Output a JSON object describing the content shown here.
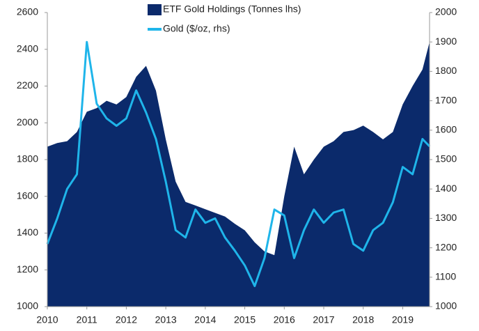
{
  "chart_data": {
    "type": "area-line",
    "x": [
      2010,
      2010.25,
      2010.5,
      2010.75,
      2011,
      2011.25,
      2011.5,
      2011.75,
      2012,
      2012.25,
      2012.5,
      2012.75,
      2013,
      2013.25,
      2013.5,
      2013.75,
      2014,
      2014.25,
      2014.5,
      2014.75,
      2015,
      2015.25,
      2015.5,
      2015.75,
      2016,
      2016.25,
      2016.5,
      2016.75,
      2017,
      2017.25,
      2017.5,
      2017.75,
      2018,
      2018.25,
      2018.5,
      2018.75,
      2019,
      2019.25,
      2019.5,
      2019.68
    ],
    "series": [
      {
        "name": "ETF Gold Holdings (Tonnes lhs)",
        "color": "#0b2a6b",
        "kind": "area",
        "values": [
          1870,
          1890,
          1900,
          1950,
          2060,
          2080,
          2120,
          2100,
          2140,
          2250,
          2310,
          2175,
          1910,
          1680,
          1570,
          1550,
          1530,
          1510,
          1490,
          1450,
          1415,
          1350,
          1300,
          1280,
          1600,
          1870,
          1720,
          1800,
          1870,
          1900,
          1950,
          1960,
          1985,
          1950,
          1910,
          1950,
          2100,
          2200,
          2290,
          2440
        ]
      },
      {
        "name": "Gold ($/oz, rhs)",
        "color": "#1fb5ea",
        "kind": "line",
        "axis": "y2",
        "values": [
          1213,
          1300,
          1400,
          1450,
          1900,
          1690,
          1640,
          1615,
          1640,
          1735,
          1660,
          1570,
          1425,
          1260,
          1235,
          1330,
          1285,
          1300,
          1235,
          1190,
          1140,
          1070,
          1165,
          1330,
          1310,
          1165,
          1260,
          1330,
          1285,
          1320,
          1330,
          1213,
          1190,
          1260,
          1285,
          1355,
          1475,
          1450,
          1570,
          1545
        ]
      }
    ],
    "xlim": [
      2010,
      2019.68
    ],
    "xticks": [
      2010,
      2011,
      2012,
      2013,
      2014,
      2015,
      2016,
      2017,
      2018,
      2019
    ],
    "ylim": [
      1000,
      2600
    ],
    "yticks": [
      1000,
      1200,
      1400,
      1600,
      1800,
      2000,
      2200,
      2400,
      2600
    ],
    "y2lim": [
      1000,
      2000
    ],
    "y2ticks": [
      1000,
      1100,
      1200,
      1300,
      1400,
      1500,
      1600,
      1700,
      1800,
      1900,
      2000
    ],
    "legend": "top"
  }
}
